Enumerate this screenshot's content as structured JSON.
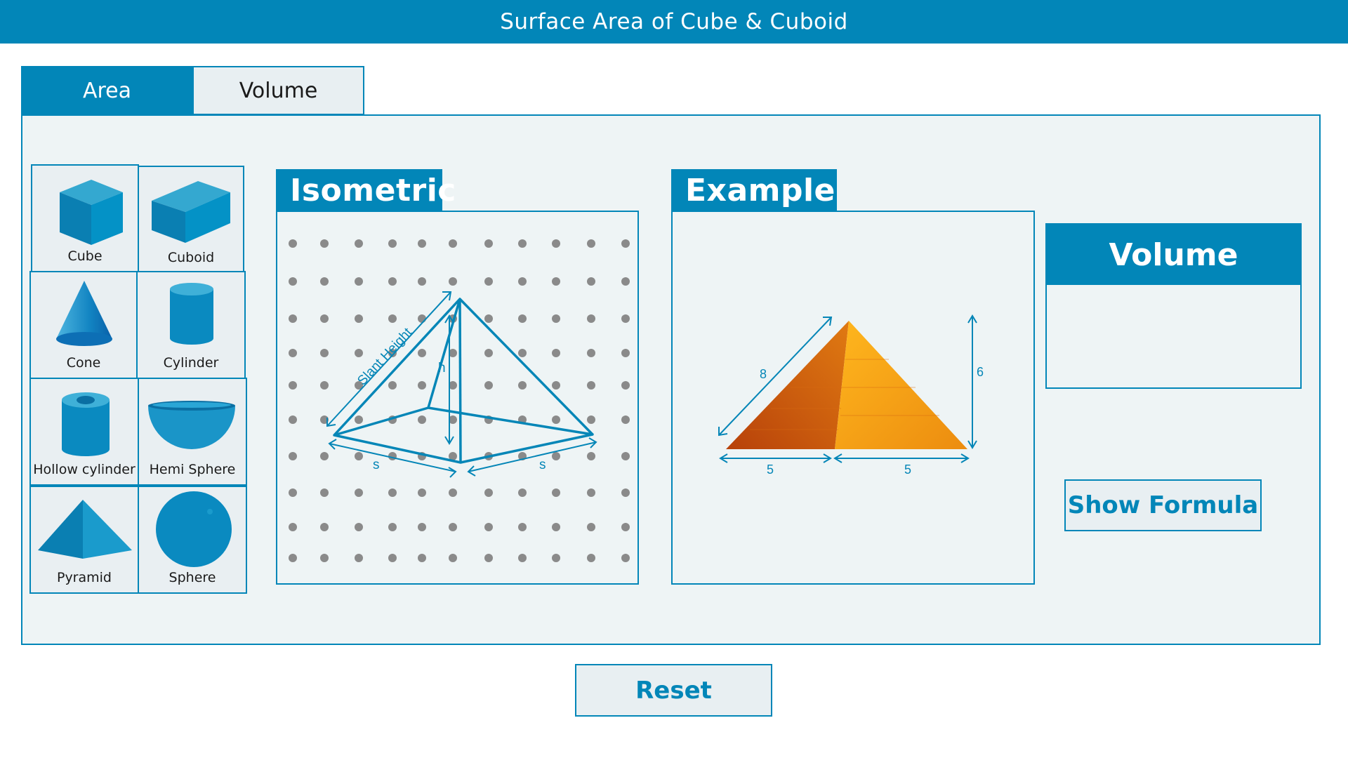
{
  "app": {
    "title": "Surface Area of Cube & Cuboid"
  },
  "tabs": [
    {
      "label": "Area",
      "active": true
    },
    {
      "label": "Volume",
      "active": false
    }
  ],
  "shapes": [
    {
      "label": "Cube",
      "icon": "cube-icon"
    },
    {
      "label": "Cuboid",
      "icon": "cuboid-icon"
    },
    {
      "label": "Cone",
      "icon": "cone-icon"
    },
    {
      "label": "Cylinder",
      "icon": "cylinder-icon"
    },
    {
      "label": "Hollow cylinder",
      "icon": "hollow-cylinder-icon"
    },
    {
      "label": "Hemi Sphere",
      "icon": "hemisphere-icon"
    },
    {
      "label": "Pyramid",
      "icon": "pyramid-icon"
    },
    {
      "label": "Sphere",
      "icon": "sphere-icon"
    }
  ],
  "isometric": {
    "title": "Isometric",
    "labels": {
      "slant_height": "Slant Height",
      "height": "h",
      "side_left": "s",
      "side_right": "s"
    }
  },
  "example": {
    "title": "Example",
    "dimensions": {
      "slant": "8",
      "height": "6",
      "base_left": "5",
      "base_right": "5"
    }
  },
  "result": {
    "title": "Volume"
  },
  "buttons": {
    "show_formula": "Show Formula",
    "reset": "Reset"
  },
  "colors": {
    "primary": "#0286b8",
    "panel_bg": "#eef4f5",
    "dot": "#8a8a8a",
    "pyramid_dark": "#c8500f",
    "pyramid_light": "#f5a11a"
  }
}
